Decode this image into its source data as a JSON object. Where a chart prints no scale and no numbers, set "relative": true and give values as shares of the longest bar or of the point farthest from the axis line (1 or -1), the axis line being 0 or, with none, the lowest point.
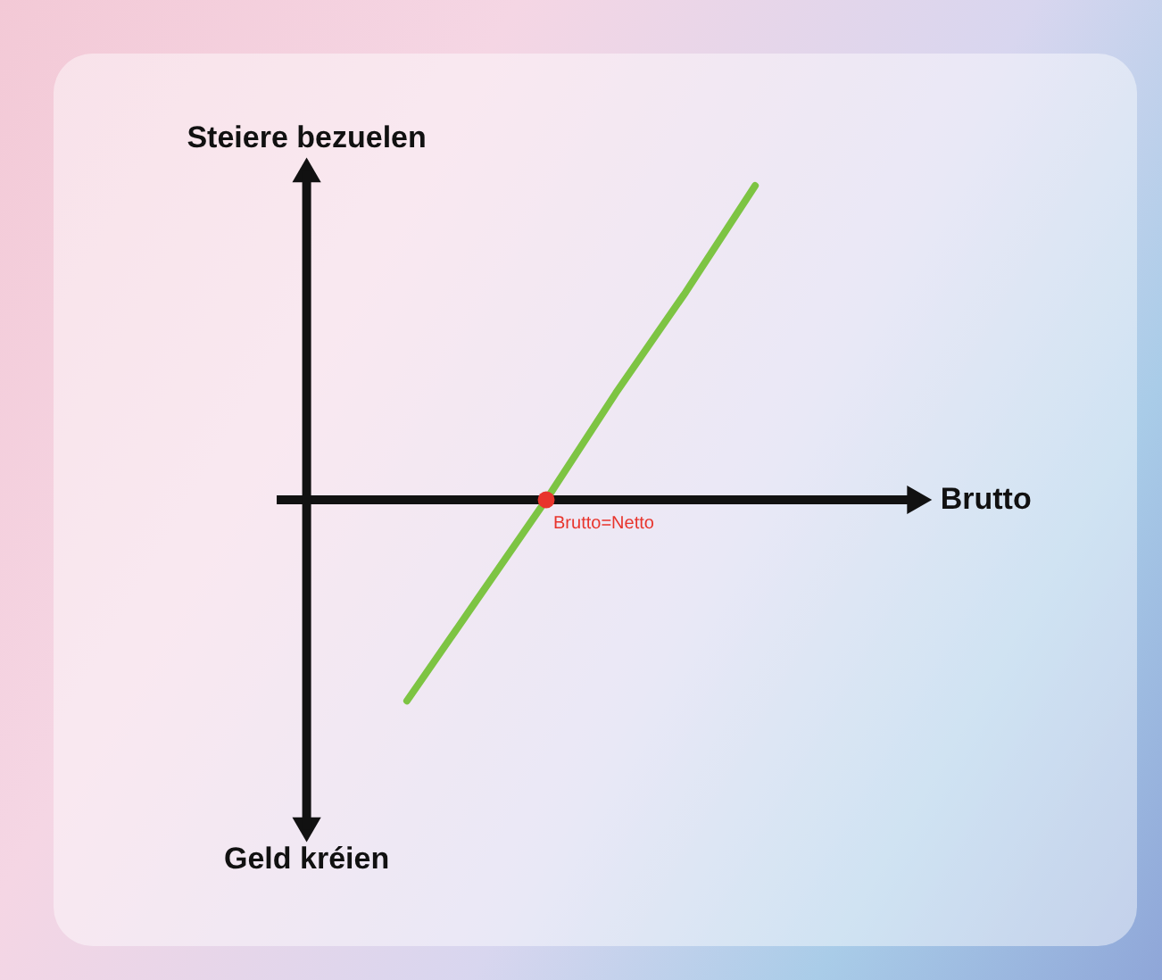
{
  "chart_data": {
    "type": "line",
    "relative": true,
    "xlabel": "Brutto",
    "ylabel": "Steiere bezuelen",
    "categories": [
      null,
      null,
      null,
      null,
      null,
      null
    ],
    "series": [
      {
        "color": "#7dc443",
        "values": [
          -0.64,
          -0.32,
          0,
          0.34,
          0.66,
          1
        ]
      }
    ],
    "annotations": [
      "Brutto=Netto",
      "Geld kréien"
    ]
  }
}
